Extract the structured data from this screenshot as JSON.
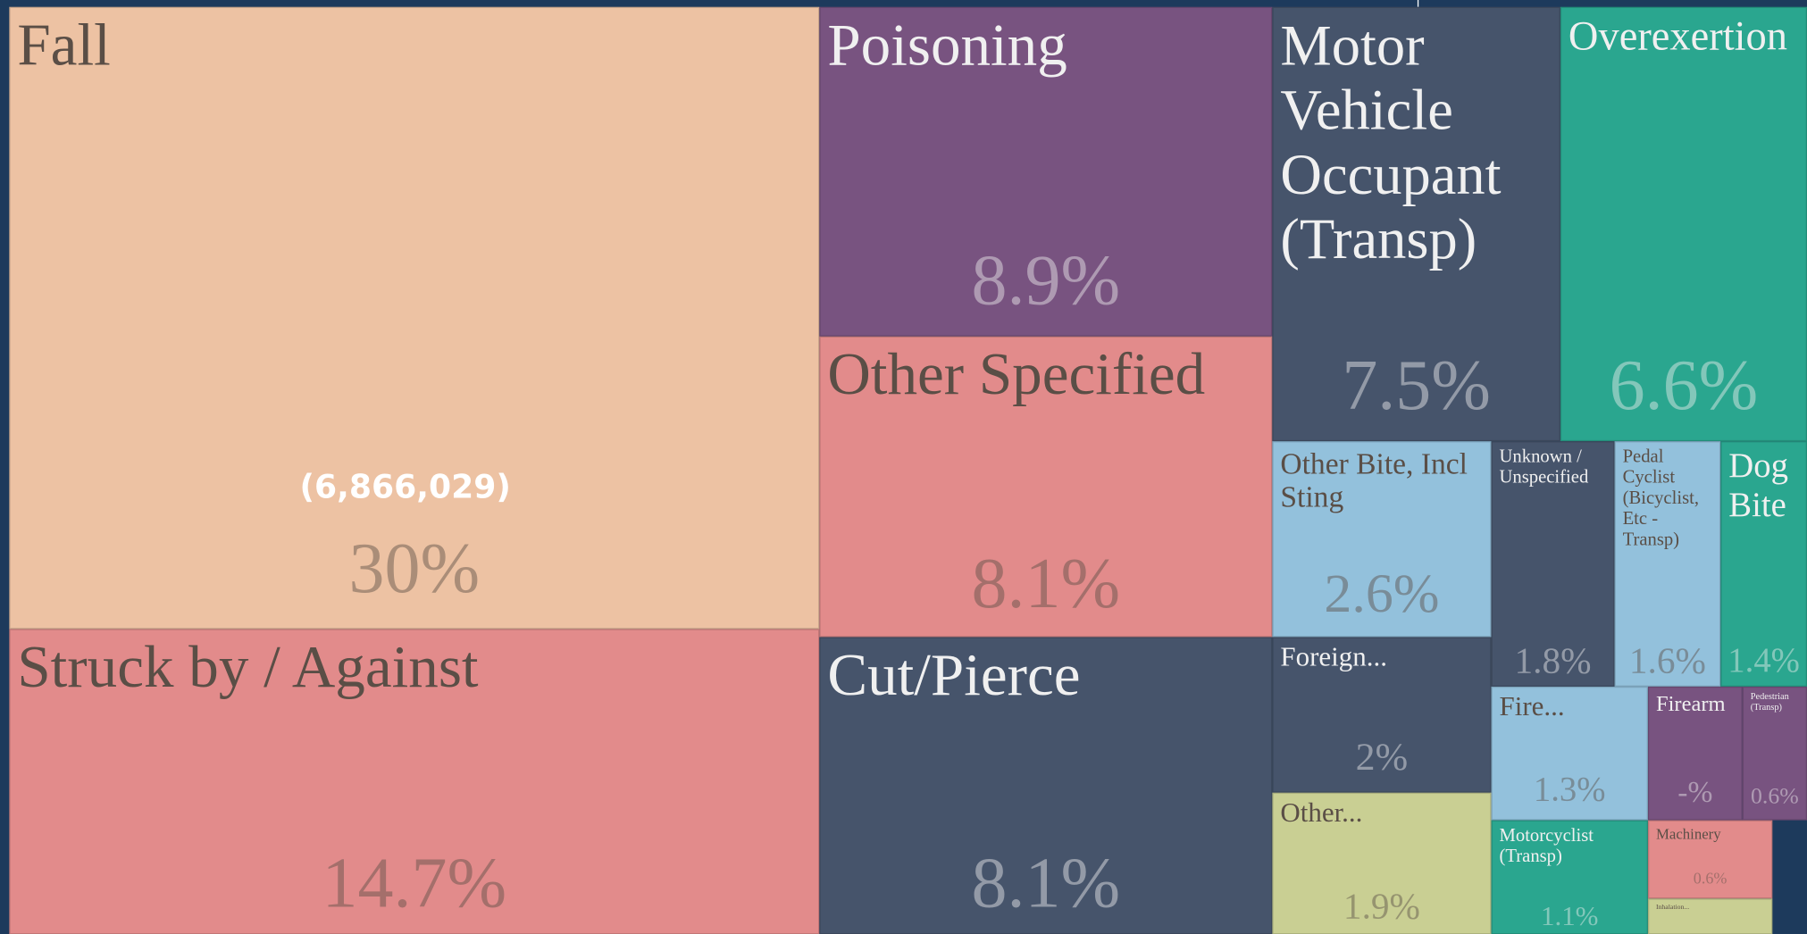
{
  "chart_data": {
    "type": "treemap",
    "annotation": "(6,866,029)",
    "categories": [
      "Fall",
      "Struck by / Against",
      "Poisoning",
      "Other Specified",
      "Cut/Pierce",
      "Motor Vehicle Occupant (Transp)",
      "Overexertion",
      "Other Bite, Incl Sting",
      "Unknown / Unspecified",
      "Pedal Cyclist (Bicyclist, Etc - Transp)",
      "Dog Bite",
      "Foreign...",
      "Fire...",
      "Firearm",
      "Pedestrian (Transp)",
      "Other...",
      "Motorcyclist (Transp)",
      "Machinery",
      "Inhalation..."
    ],
    "values": [
      30,
      14.7,
      8.9,
      8.1,
      8.1,
      7.5,
      6.6,
      2.6,
      1.8,
      1.6,
      1.4,
      2,
      1.3,
      null,
      0.6,
      1.9,
      1.1,
      0.6,
      null
    ],
    "value_labels": [
      "30%",
      "14.7%",
      "8.9%",
      "8.1%",
      "8.1%",
      "7.5%",
      "6.6%",
      "2.6%",
      "1.8%",
      "1.6%",
      "1.4%",
      "2%",
      "1.3%",
      "-%",
      "0.6%",
      "1.9%",
      "1.1%",
      "0.6%",
      null
    ],
    "colors": [
      "#edc2a3",
      "#e28b8b",
      "#785380",
      "#e28b8b",
      "#46546b",
      "#46546b",
      "#2aa68f",
      "#93c1dc",
      "#46546b",
      "#93c1dc",
      "#2aa68f",
      "#46546b",
      "#93c1dc",
      "#785380",
      "#785380",
      "#c9cf93",
      "#2aa68f",
      "#e28b8b",
      "#c9cf93"
    ]
  }
}
